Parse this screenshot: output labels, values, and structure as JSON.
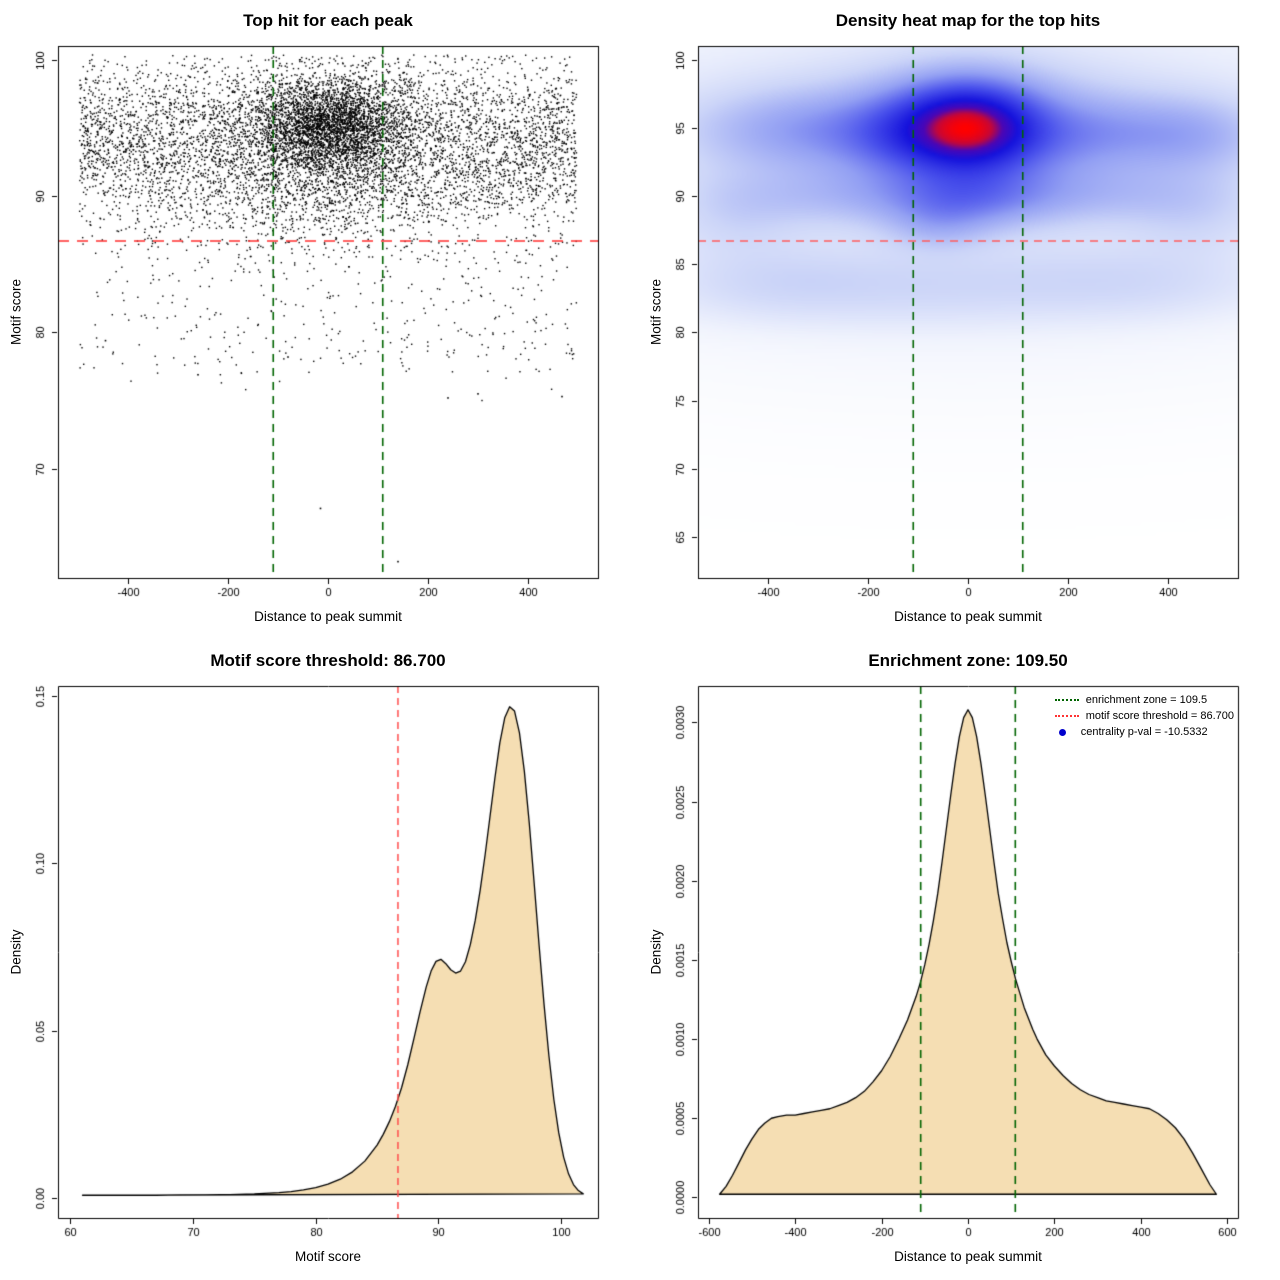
{
  "figure": {
    "background": "#ffffff"
  },
  "chart_data": [
    {
      "type": "scatter",
      "title": "Top hit for each peak",
      "xlabel": "Distance to peak summit",
      "ylabel": "Motif score",
      "xlim": [
        -540,
        540
      ],
      "ylim": [
        62,
        101
      ],
      "xticks": [
        -400,
        -200,
        0,
        200,
        400
      ],
      "xtick_labels": [
        "-400",
        "-200",
        "0",
        "200",
        "400"
      ],
      "yticks": [
        70,
        80,
        90,
        100
      ],
      "ytick_labels": [
        "70",
        "80",
        "90",
        "100"
      ],
      "point_color": "#000000",
      "ref_lines": [
        {
          "name": "motif-score-threshold-line",
          "orient": "h",
          "at": 86.7,
          "color": "#ff2d2d",
          "dash": [
            11,
            8
          ],
          "width": 1.6
        },
        {
          "name": "enrichment-zone-left-line",
          "orient": "v",
          "at": -109.5,
          "color": "#006400",
          "dash": [
            8,
            6
          ],
          "width": 1.6
        },
        {
          "name": "enrichment-zone-right-line",
          "orient": "v",
          "at": 109.5,
          "color": "#006400",
          "dash": [
            8,
            6
          ],
          "width": 1.6
        }
      ],
      "points_model": {
        "seed": 20240612,
        "reflect_top": 100.35,
        "x_clip": 497,
        "clusters": [
          {
            "n": 3200,
            "x": {
              "dist": "normal",
              "mu": 0,
              "sd": 78
            },
            "y": {
              "dist": "normal",
              "mu": 95.1,
              "sd": 1.8
            }
          },
          {
            "n": 5200,
            "x": {
              "dist": "uniform",
              "min": -497,
              "max": 497
            },
            "y": {
              "dist": "normal",
              "mu": 93.9,
              "sd": 3.0
            }
          },
          {
            "n": 700,
            "x": {
              "dist": "normal",
              "mu": 0,
              "sd": 170
            },
            "y": {
              "dist": "normal",
              "mu": 89.7,
              "sd": 1.9
            }
          },
          {
            "n": 380,
            "x": {
              "dist": "uniform",
              "min": -497,
              "max": 497
            },
            "y": {
              "dist": "uniform",
              "min": 77,
              "max": 87
            }
          },
          {
            "n": 12,
            "x": {
              "dist": "uniform",
              "min": -480,
              "max": 480
            },
            "y": {
              "dist": "uniform",
              "min": 75,
              "max": 79
            }
          }
        ],
        "outliers": [
          [
            -15,
            67.1
          ],
          [
            140,
            63.2
          ],
          [
            300,
            75.5
          ],
          [
            468,
            75.3
          ],
          [
            240,
            75.2
          ],
          [
            -260,
            76.9
          ],
          [
            -445,
            79.4
          ],
          [
            -80,
            78.2
          ]
        ]
      }
    },
    {
      "type": "heatmap",
      "title": "Density heat map for the top hits",
      "xlabel": "Distance to peak summit",
      "ylabel": "Motif score",
      "xlim": [
        -540,
        540
      ],
      "ylim": [
        62,
        101
      ],
      "xticks": [
        -400,
        -200,
        0,
        200,
        400
      ],
      "xtick_labels": [
        "-400",
        "-200",
        "0",
        "200",
        "400"
      ],
      "yticks": [
        65,
        70,
        75,
        80,
        85,
        90,
        95,
        100
      ],
      "ytick_labels": [
        "65",
        "70",
        "75",
        "80",
        "85",
        "90",
        "95",
        "100"
      ],
      "gamma": 0.5,
      "ramp": [
        [
          0.0,
          "#ffffff"
        ],
        [
          0.1,
          "#f0f3fd"
        ],
        [
          0.28,
          "#ccd5f8"
        ],
        [
          0.48,
          "#93a0f3"
        ],
        [
          0.66,
          "#4a52ec"
        ],
        [
          0.82,
          "#1512dc"
        ],
        [
          0.9,
          "#4c06b4"
        ],
        [
          0.95,
          "#c70636"
        ],
        [
          1.0,
          "#ff0000"
        ]
      ],
      "blobs": [
        [
          0,
          95.1,
          85,
          2.1,
          1.0
        ],
        [
          0,
          95.0,
          130,
          2.6,
          0.5
        ],
        [
          0,
          93.9,
          270,
          3.1,
          0.25
        ],
        [
          -320,
          94.9,
          150,
          1.9,
          0.3
        ],
        [
          -140,
          94.6,
          80,
          2.0,
          0.22
        ],
        [
          280,
          94.7,
          150,
          1.8,
          0.26
        ],
        [
          460,
          94.4,
          90,
          1.8,
          0.18
        ],
        [
          0,
          89.8,
          110,
          1.5,
          0.33
        ],
        [
          -230,
          90.0,
          170,
          1.4,
          0.16
        ],
        [
          240,
          90.1,
          170,
          1.4,
          0.16
        ],
        [
          -60,
          87.9,
          70,
          1.3,
          0.18
        ],
        [
          -380,
          83.6,
          150,
          1.7,
          0.1
        ],
        [
          -60,
          83.4,
          200,
          1.8,
          0.1
        ],
        [
          320,
          83.7,
          170,
          1.7,
          0.1
        ],
        [
          -460,
          88.6,
          90,
          2.2,
          0.1
        ],
        [
          450,
          88.8,
          90,
          2.2,
          0.1
        ],
        [
          0,
          93.0,
          520,
          7.0,
          0.07
        ]
      ],
      "ref_lines": [
        {
          "name": "motif-score-threshold-line",
          "orient": "h",
          "at": 86.7,
          "color": "#ff5c5c",
          "dash": [
            8,
            6
          ],
          "width": 1.5
        },
        {
          "name": "enrichment-zone-left-line",
          "orient": "v",
          "at": -109.5,
          "color": "#006400",
          "dash": [
            8,
            6
          ],
          "width": 1.6
        },
        {
          "name": "enrichment-zone-right-line",
          "orient": "v",
          "at": 109.5,
          "color": "#006400",
          "dash": [
            8,
            6
          ],
          "width": 1.6
        }
      ]
    },
    {
      "type": "density",
      "title": "Motif score threshold: 86.700",
      "xlabel": "Motif score",
      "ylabel": "Density",
      "xlim": [
        59,
        103
      ],
      "ylim": [
        -0.006,
        0.153
      ],
      "xticks": [
        60,
        70,
        80,
        90,
        100
      ],
      "xtick_labels": [
        "60",
        "70",
        "80",
        "90",
        "100"
      ],
      "yticks": [
        0,
        0.05,
        0.1,
        0.15
      ],
      "ytick_labels": [
        "0.00",
        "0.05",
        "0.10",
        "0.15"
      ],
      "fill": "#f5deb3",
      "stroke": "#000000",
      "ref_lines": [
        {
          "name": "motif-score-threshold-line",
          "orient": "v",
          "at": 86.7,
          "color": "#ff4d4d",
          "dash": [
            7,
            5
          ],
          "width": 1.5
        }
      ],
      "curve": [
        [
          61,
          0.0008
        ],
        [
          63,
          0.0008
        ],
        [
          65,
          0.0008
        ],
        [
          67,
          0.0008
        ],
        [
          69,
          0.0009
        ],
        [
          71,
          0.0009
        ],
        [
          73,
          0.001
        ],
        [
          75,
          0.0012
        ],
        [
          77,
          0.0016
        ],
        [
          78,
          0.0019
        ],
        [
          79,
          0.0024
        ],
        [
          80,
          0.0031
        ],
        [
          81,
          0.0041
        ],
        [
          82,
          0.0056
        ],
        [
          83,
          0.0078
        ],
        [
          84,
          0.011
        ],
        [
          85,
          0.0158
        ],
        [
          85.5,
          0.019
        ],
        [
          86,
          0.0228
        ],
        [
          86.5,
          0.0274
        ],
        [
          87,
          0.033
        ],
        [
          87.5,
          0.0398
        ],
        [
          88,
          0.0476
        ],
        [
          88.5,
          0.0556
        ],
        [
          89,
          0.063
        ],
        [
          89.4,
          0.0678
        ],
        [
          89.8,
          0.0707
        ],
        [
          90.2,
          0.0713
        ],
        [
          90.6,
          0.07
        ],
        [
          91,
          0.0682
        ],
        [
          91.4,
          0.0672
        ],
        [
          91.8,
          0.0678
        ],
        [
          92.2,
          0.0706
        ],
        [
          92.6,
          0.0758
        ],
        [
          93,
          0.083
        ],
        [
          93.4,
          0.092
        ],
        [
          93.8,
          0.1025
        ],
        [
          94.2,
          0.114
        ],
        [
          94.6,
          0.1255
        ],
        [
          95,
          0.136
        ],
        [
          95.4,
          0.1435
        ],
        [
          95.8,
          0.1468
        ],
        [
          96.2,
          0.1455
        ],
        [
          96.6,
          0.139
        ],
        [
          97,
          0.1275
        ],
        [
          97.4,
          0.112
        ],
        [
          97.8,
          0.094
        ],
        [
          98.2,
          0.0755
        ],
        [
          98.6,
          0.058
        ],
        [
          99,
          0.0425
        ],
        [
          99.4,
          0.0295
        ],
        [
          99.8,
          0.0195
        ],
        [
          100.2,
          0.0122
        ],
        [
          100.6,
          0.0072
        ],
        [
          101,
          0.004
        ],
        [
          101.4,
          0.0022
        ],
        [
          101.8,
          0.0012
        ]
      ]
    },
    {
      "type": "density",
      "title": "Enrichment zone: 109.50",
      "xlabel": "Distance to peak summit",
      "ylabel": "Density",
      "xlim": [
        -625,
        625
      ],
      "ylim": [
        -0.00013,
        0.00323
      ],
      "xticks": [
        -600,
        -400,
        -200,
        0,
        200,
        400,
        600
      ],
      "xtick_labels": [
        "-600",
        "-400",
        "-200",
        "0",
        "200",
        "400",
        "600"
      ],
      "yticks": [
        0,
        0.0005,
        0.001,
        0.0015,
        0.002,
        0.0025,
        0.003
      ],
      "ytick_labels": [
        "0.0000",
        "0.0005",
        "0.0010",
        "0.0015",
        "0.0020",
        "0.0025",
        "0.0030"
      ],
      "fill": "#f5deb3",
      "stroke": "#000000",
      "ref_lines": [
        {
          "name": "enrichment-zone-left-line",
          "orient": "v",
          "at": -109.5,
          "color": "#006400",
          "dash": [
            8,
            6
          ],
          "width": 1.6
        },
        {
          "name": "enrichment-zone-right-line",
          "orient": "v",
          "at": 109.5,
          "color": "#006400",
          "dash": [
            8,
            6
          ],
          "width": 1.6
        }
      ],
      "curve": [
        [
          -575,
          2e-05
        ],
        [
          -560,
          7e-05
        ],
        [
          -545,
          0.00014
        ],
        [
          -530,
          0.00022
        ],
        [
          -515,
          0.0003
        ],
        [
          -500,
          0.00037
        ],
        [
          -485,
          0.00043
        ],
        [
          -470,
          0.00047
        ],
        [
          -455,
          0.0005
        ],
        [
          -440,
          0.00051
        ],
        [
          -420,
          0.00052
        ],
        [
          -400,
          0.00052
        ],
        [
          -380,
          0.00053
        ],
        [
          -360,
          0.00054
        ],
        [
          -340,
          0.00055
        ],
        [
          -320,
          0.00056
        ],
        [
          -300,
          0.00058
        ],
        [
          -280,
          0.0006
        ],
        [
          -260,
          0.00063
        ],
        [
          -240,
          0.00067
        ],
        [
          -220,
          0.00073
        ],
        [
          -200,
          0.0008
        ],
        [
          -180,
          0.00089
        ],
        [
          -160,
          0.001
        ],
        [
          -140,
          0.00112
        ],
        [
          -120,
          0.00127
        ],
        [
          -110,
          0.00136
        ],
        [
          -100,
          0.00147
        ],
        [
          -90,
          0.0016
        ],
        [
          -80,
          0.00175
        ],
        [
          -70,
          0.00192
        ],
        [
          -60,
          0.00212
        ],
        [
          -50,
          0.00233
        ],
        [
          -40,
          0.00254
        ],
        [
          -30,
          0.00274
        ],
        [
          -20,
          0.00291
        ],
        [
          -10,
          0.00303
        ],
        [
          0,
          0.00308
        ],
        [
          10,
          0.00303
        ],
        [
          20,
          0.00291
        ],
        [
          30,
          0.00274
        ],
        [
          40,
          0.00254
        ],
        [
          50,
          0.00233
        ],
        [
          60,
          0.00212
        ],
        [
          70,
          0.00192
        ],
        [
          80,
          0.00176
        ],
        [
          90,
          0.00161
        ],
        [
          100,
          0.00149
        ],
        [
          110,
          0.00138
        ],
        [
          120,
          0.00129
        ],
        [
          130,
          0.0012
        ],
        [
          140,
          0.00113
        ],
        [
          150,
          0.00106
        ],
        [
          160,
          0.001
        ],
        [
          180,
          0.0009
        ],
        [
          200,
          0.00083
        ],
        [
          220,
          0.00077
        ],
        [
          240,
          0.00072
        ],
        [
          260,
          0.00068
        ],
        [
          280,
          0.00065
        ],
        [
          300,
          0.00063
        ],
        [
          320,
          0.00061
        ],
        [
          340,
          0.0006
        ],
        [
          360,
          0.00059
        ],
        [
          380,
          0.00058
        ],
        [
          400,
          0.00057
        ],
        [
          420,
          0.00056
        ],
        [
          440,
          0.00053
        ],
        [
          460,
          0.00049
        ],
        [
          480,
          0.00044
        ],
        [
          500,
          0.00037
        ],
        [
          520,
          0.00028
        ],
        [
          540,
          0.00018
        ],
        [
          560,
          8e-05
        ],
        [
          575,
          2e-05
        ]
      ],
      "legend": [
        {
          "swatch": "line",
          "color": "#006400",
          "label": "enrichment zone = 109.5"
        },
        {
          "swatch": "line",
          "color": "#ff3333",
          "label": "motif score threshold = 86.700"
        },
        {
          "swatch": "dot",
          "color": "#0000cd",
          "label": "centrality p-val = -10.5332"
        }
      ]
    }
  ]
}
